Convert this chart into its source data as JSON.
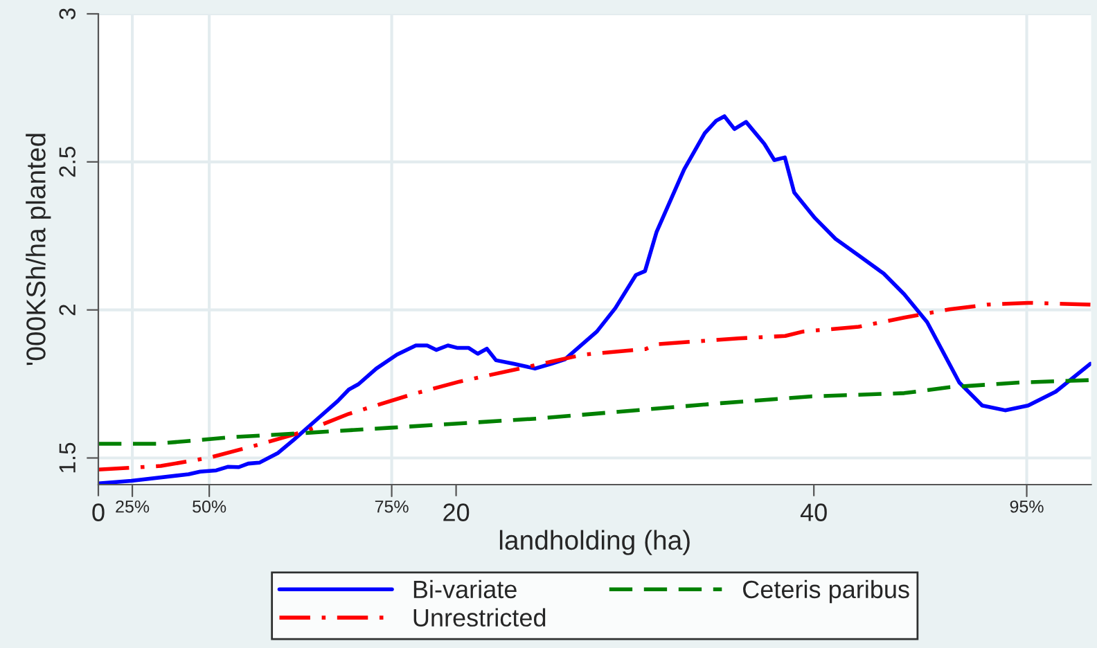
{
  "chart_data": {
    "type": "line",
    "xlabel": "landholding (ha)",
    "ylabel": "'000KSh/ha planted",
    "xlim": [
      0,
      55.5
    ],
    "ylim": [
      1.41,
      3
    ],
    "xticks": [
      0,
      20,
      40
    ],
    "yticks": [
      1.5,
      2,
      2.5,
      3
    ],
    "grid": "y",
    "legend": "bottom",
    "marker": "none",
    "ref_lines": [
      {
        "axis": "x",
        "value": 1.9
      },
      {
        "axis": "x",
        "value": 6.2
      },
      {
        "axis": "x",
        "value": 16.4
      },
      {
        "axis": "x",
        "value": 51.9
      }
    ],
    "annotations": [
      {
        "text": "25%",
        "x": 1.9,
        "y": 1.41
      },
      {
        "text": "50%",
        "x": 6.2,
        "y": 1.41
      },
      {
        "text": "75%",
        "x": 16.4,
        "y": 1.41
      },
      {
        "text": "95%",
        "x": 51.9,
        "y": 1.41
      }
    ],
    "series": [
      {
        "name": "Bi-variate",
        "color": "#0000ff",
        "line_style": "solid",
        "x": [
          0,
          1.85,
          5.05,
          5.69,
          6.59,
          7.23,
          7.85,
          8.38,
          9.0,
          10.05,
          10.92,
          12.23,
          13.38,
          14.0,
          14.54,
          15.54,
          16.69,
          17.75,
          18.38,
          18.9,
          19.54,
          20.05,
          20.69,
          21.21,
          21.72,
          22.23,
          23.23,
          24.41,
          25.31,
          26.08,
          27.87,
          28.9,
          30.05,
          30.56,
          31.21,
          32.75,
          33.9,
          34.54,
          35.0,
          35.56,
          36.21,
          37.23,
          37.79,
          38.38,
          38.9,
          40.05,
          41.21,
          42.48,
          43.9,
          45.05,
          46.33,
          48.13,
          49.41,
          50.69,
          51.98,
          53.52,
          55.46
        ],
        "values": [
          1.414,
          1.423,
          1.445,
          1.454,
          1.458,
          1.47,
          1.469,
          1.481,
          1.484,
          1.517,
          1.561,
          1.631,
          1.692,
          1.731,
          1.749,
          1.802,
          1.849,
          1.88,
          1.88,
          1.865,
          1.88,
          1.872,
          1.872,
          1.852,
          1.869,
          1.83,
          1.818,
          1.802,
          1.818,
          1.833,
          1.927,
          2.006,
          2.118,
          2.131,
          2.264,
          2.475,
          2.597,
          2.639,
          2.654,
          2.611,
          2.635,
          2.561,
          2.506,
          2.515,
          2.397,
          2.311,
          2.24,
          2.185,
          2.123,
          2.053,
          1.959,
          1.755,
          1.677,
          1.661,
          1.677,
          1.724,
          1.818
        ]
      },
      {
        "name": "Unrestricted",
        "color": "#ff0000",
        "line_style": "dashdot",
        "x": [
          0,
          3.5,
          6.2,
          8.9,
          11.6,
          14.0,
          17.6,
          20.2,
          25.3,
          27.1,
          30.6,
          31.2,
          35.8,
          38.4,
          39.4,
          42.5,
          45.05,
          47.6,
          49.7,
          52.0,
          55.46
        ],
        "values": [
          1.461,
          1.473,
          1.501,
          1.544,
          1.591,
          1.649,
          1.716,
          1.758,
          1.825,
          1.849,
          1.868,
          1.884,
          1.904,
          1.912,
          1.927,
          1.943,
          1.974,
          2.002,
          2.018,
          2.024,
          2.018
        ]
      },
      {
        "name": "Ceteris paribus",
        "color": "#008000",
        "line_style": "dashed",
        "x": [
          0,
          3.25,
          7.4,
          11.2,
          16.3,
          24.5,
          34.8,
          39.9,
          45.05,
          47.6,
          51.5,
          55.46
        ],
        "values": [
          1.548,
          1.548,
          1.57,
          1.583,
          1.602,
          1.633,
          1.685,
          1.708,
          1.719,
          1.739,
          1.755,
          1.763
        ]
      }
    ]
  }
}
